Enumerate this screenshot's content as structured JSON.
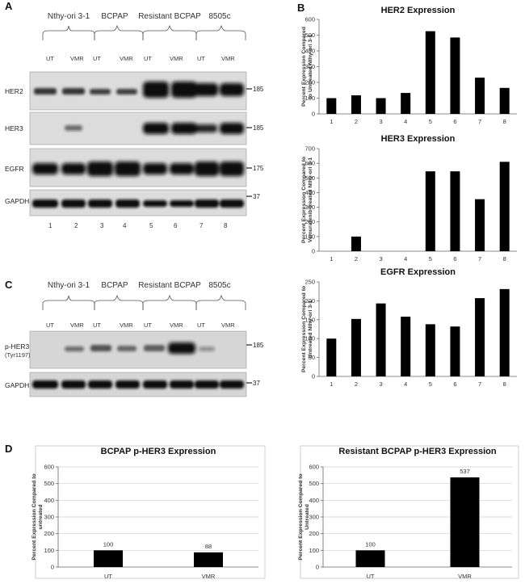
{
  "panels": {
    "a": "A",
    "b": "B",
    "c": "C",
    "d": "D"
  },
  "blot_a": {
    "groups": [
      "Nthy-ori 3-1",
      "BCPAP",
      "Resistant BCPAP",
      "8505c"
    ],
    "lane_labels": [
      "UT",
      "VMR",
      "UT",
      "VMR",
      "UT",
      "VMR",
      "UT",
      "VMR"
    ],
    "lane_numbers": [
      "1",
      "2",
      "3",
      "4",
      "5",
      "6",
      "7",
      "8"
    ],
    "rows": [
      {
        "label": "HER2",
        "mw": "185"
      },
      {
        "label": "HER3",
        "mw": "185"
      },
      {
        "label": "EGFR",
        "mw": "175"
      },
      {
        "label": "GAPDH",
        "mw": "37"
      }
    ]
  },
  "blot_c": {
    "groups": [
      "Nthy-ori 3-1",
      "BCPAP",
      "Resistant BCPAP",
      "8505c"
    ],
    "lane_labels": [
      "UT",
      "VMR",
      "UT",
      "VMR",
      "UT",
      "VMR",
      "UT",
      "VMR"
    ],
    "rows": [
      {
        "label": "p-HER3",
        "sublabel": "(Tyr1197)",
        "mw": "185"
      },
      {
        "label": "GAPDH",
        "mw": "37"
      }
    ]
  },
  "chart_data": [
    {
      "id": "her2",
      "type": "bar",
      "title": "HER2 Expression",
      "ylabel": [
        "Percent Expression Compared",
        "to Untreated Nthy-ori 3-1"
      ],
      "categories": [
        "1",
        "2",
        "3",
        "4",
        "5",
        "6",
        "7",
        "8"
      ],
      "values": [
        100,
        118,
        100,
        133,
        525,
        485,
        230,
        165
      ],
      "ylim": [
        0,
        600
      ],
      "yticks": [
        0,
        100,
        200,
        300,
        400,
        500,
        600
      ],
      "grid": false,
      "value_labels": false
    },
    {
      "id": "her3",
      "type": "bar",
      "title": "HER3 Expression",
      "ylabel": [
        "Percent Expression Compared to",
        "Vemurafenib-treated Nthy-ori 3-1"
      ],
      "categories": [
        "1",
        "2",
        "3",
        "4",
        "5",
        "6",
        "7",
        "8"
      ],
      "values": [
        0,
        100,
        0,
        0,
        545,
        545,
        355,
        610
      ],
      "ylim": [
        0,
        700
      ],
      "yticks": [
        0,
        100,
        200,
        300,
        400,
        500,
        600,
        700
      ],
      "grid": false,
      "value_labels": false
    },
    {
      "id": "egfr",
      "type": "bar",
      "title": "EGFR Expression",
      "ylabel": [
        "Percent Expression Compared to",
        "Untreated Nthy-ori 3-1"
      ],
      "categories": [
        "1",
        "2",
        "3",
        "4",
        "5",
        "6",
        "7",
        "8"
      ],
      "values": [
        100,
        152,
        193,
        158,
        138,
        132,
        207,
        231
      ],
      "ylim": [
        0,
        250
      ],
      "yticks": [
        0,
        50,
        100,
        150,
        200,
        250
      ],
      "grid": false,
      "value_labels": false
    },
    {
      "id": "bcpap-phe3",
      "type": "bar",
      "title": "BCPAP p-HER3 Expression",
      "ylabel": [
        "Percent Expression Compared to",
        "untreated"
      ],
      "categories": [
        "UT",
        "VMR"
      ],
      "values": [
        100,
        88
      ],
      "data_labels": [
        "100",
        "88"
      ],
      "ylim": [
        0,
        600
      ],
      "yticks": [
        0,
        100,
        200,
        300,
        400,
        500,
        600
      ],
      "grid": true,
      "value_labels": true
    },
    {
      "id": "resistant-phe3",
      "type": "bar",
      "title": "Resistant BCPAP p-HER3 Expression",
      "ylabel": [
        "Percent Expression Compared to",
        "Untreated"
      ],
      "categories": [
        "UT",
        "VMR"
      ],
      "values": [
        100,
        537
      ],
      "data_labels": [
        "100",
        "537"
      ],
      "ylim": [
        0,
        600
      ],
      "yticks": [
        0,
        100,
        200,
        300,
        400,
        500,
        600
      ],
      "grid": true,
      "value_labels": true
    }
  ]
}
